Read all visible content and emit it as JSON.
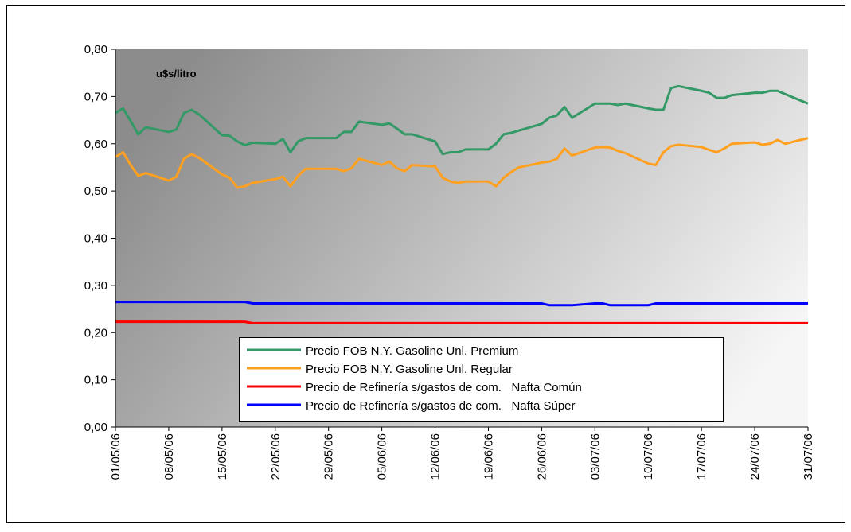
{
  "chart_data": {
    "type": "line",
    "annotation": "u$s/litro",
    "x": [
      "01/05/06",
      "02/05/06",
      "03/05/06",
      "04/05/06",
      "05/05/06",
      "08/05/06",
      "09/05/06",
      "10/05/06",
      "11/05/06",
      "12/05/06",
      "15/05/06",
      "16/05/06",
      "17/05/06",
      "18/05/06",
      "19/05/06",
      "22/05/06",
      "23/05/06",
      "24/05/06",
      "25/05/06",
      "26/05/06",
      "29/05/06",
      "30/05/06",
      "31/05/06",
      "01/06/06",
      "02/06/06",
      "05/06/06",
      "06/06/06",
      "07/06/06",
      "08/06/06",
      "09/06/06",
      "12/06/06",
      "13/06/06",
      "14/06/06",
      "15/06/06",
      "16/06/06",
      "19/06/06",
      "20/06/06",
      "21/06/06",
      "22/06/06",
      "23/06/06",
      "26/06/06",
      "27/06/06",
      "28/06/06",
      "29/06/06",
      "30/06/06",
      "03/07/06",
      "04/07/06",
      "05/07/06",
      "06/07/06",
      "07/07/06",
      "10/07/06",
      "11/07/06",
      "12/07/06",
      "13/07/06",
      "14/07/06",
      "17/07/06",
      "18/07/06",
      "19/07/06",
      "20/07/06",
      "21/07/06",
      "24/07/06",
      "25/07/06",
      "26/07/06",
      "27/07/06",
      "28/07/06",
      "31/07/06"
    ],
    "series": [
      {
        "name": "Precio FOB N.Y. Gasoline Unl. Premium",
        "color": "#339966",
        "values": [
          0.665,
          0.675,
          0.648,
          0.62,
          0.635,
          0.625,
          0.63,
          0.665,
          0.672,
          0.662,
          0.618,
          0.617,
          0.605,
          0.597,
          0.602,
          0.6,
          0.61,
          0.582,
          0.605,
          0.612,
          0.612,
          0.612,
          0.625,
          0.625,
          0.647,
          0.64,
          0.643,
          0.632,
          0.62,
          0.62,
          0.605,
          0.578,
          0.582,
          0.582,
          0.588,
          0.588,
          0.6,
          0.62,
          0.623,
          0.628,
          0.642,
          0.655,
          0.66,
          0.678,
          0.655,
          0.685,
          0.685,
          0.685,
          0.682,
          0.685,
          0.675,
          0.672,
          0.672,
          0.718,
          0.722,
          0.712,
          0.708,
          0.697,
          0.697,
          0.703,
          0.708,
          0.708,
          0.712,
          0.712,
          0.705,
          0.685
        ]
      },
      {
        "name": "Precio FOB N.Y. Gasoline Unl. Regular",
        "color": "#ffa020",
        "values": [
          0.572,
          0.582,
          0.555,
          0.532,
          0.538,
          0.522,
          0.53,
          0.568,
          0.578,
          0.57,
          0.535,
          0.528,
          0.507,
          0.51,
          0.517,
          0.525,
          0.53,
          0.51,
          0.532,
          0.547,
          0.547,
          0.547,
          0.542,
          0.548,
          0.568,
          0.555,
          0.562,
          0.548,
          0.542,
          0.555,
          0.552,
          0.528,
          0.52,
          0.517,
          0.52,
          0.52,
          0.51,
          0.528,
          0.54,
          0.55,
          0.56,
          0.562,
          0.568,
          0.59,
          0.575,
          0.592,
          0.593,
          0.592,
          0.585,
          0.58,
          0.558,
          0.555,
          0.582,
          0.595,
          0.598,
          0.593,
          0.587,
          0.582,
          0.59,
          0.6,
          0.603,
          0.598,
          0.6,
          0.608,
          0.6,
          0.612
        ]
      },
      {
        "name": "Precio de Refinería s/gastos de com.   Nafta Común",
        "color": "#ff0000",
        "values": [
          0.223,
          0.223,
          0.223,
          0.223,
          0.223,
          0.223,
          0.223,
          0.223,
          0.223,
          0.223,
          0.223,
          0.223,
          0.223,
          0.223,
          0.22,
          0.22,
          0.22,
          0.22,
          0.22,
          0.22,
          0.22,
          0.22,
          0.22,
          0.22,
          0.22,
          0.22,
          0.22,
          0.22,
          0.22,
          0.22,
          0.22,
          0.22,
          0.22,
          0.22,
          0.22,
          0.22,
          0.22,
          0.22,
          0.22,
          0.22,
          0.22,
          0.22,
          0.22,
          0.22,
          0.22,
          0.22,
          0.22,
          0.22,
          0.22,
          0.22,
          0.22,
          0.22,
          0.22,
          0.22,
          0.22,
          0.22,
          0.22,
          0.22,
          0.22,
          0.22,
          0.22,
          0.22,
          0.22,
          0.22,
          0.22,
          0.22
        ]
      },
      {
        "name": "Precio de Refinería s/gastos de com.   Nafta Súper",
        "color": "#0000ff",
        "values": [
          0.265,
          0.265,
          0.265,
          0.265,
          0.265,
          0.265,
          0.265,
          0.265,
          0.265,
          0.265,
          0.265,
          0.265,
          0.265,
          0.265,
          0.262,
          0.262,
          0.262,
          0.262,
          0.262,
          0.262,
          0.262,
          0.262,
          0.262,
          0.262,
          0.262,
          0.262,
          0.262,
          0.262,
          0.262,
          0.262,
          0.262,
          0.262,
          0.262,
          0.262,
          0.262,
          0.262,
          0.262,
          0.262,
          0.262,
          0.262,
          0.262,
          0.258,
          0.258,
          0.258,
          0.258,
          0.262,
          0.262,
          0.258,
          0.258,
          0.258,
          0.258,
          0.262,
          0.262,
          0.262,
          0.262,
          0.262,
          0.262,
          0.262,
          0.262,
          0.262,
          0.262,
          0.262,
          0.262,
          0.262,
          0.262,
          0.262
        ]
      }
    ],
    "xlim": [
      "01/05/06",
      "31/07/06"
    ],
    "xticks": [
      "01/05/06",
      "08/05/06",
      "15/05/06",
      "22/05/06",
      "29/05/06",
      "05/06/06",
      "12/06/06",
      "19/06/06",
      "26/06/06",
      "03/07/06",
      "10/07/06",
      "17/07/06",
      "24/07/06",
      "31/07/06"
    ],
    "ylim": [
      0,
      0.8
    ],
    "yticks": [
      {
        "value": 0,
        "label": "0,00"
      },
      {
        "value": 0.1,
        "label": "0,10"
      },
      {
        "value": 0.2,
        "label": "0,20"
      },
      {
        "value": 0.3,
        "label": "0,30"
      },
      {
        "value": 0.4,
        "label": "0,40"
      },
      {
        "value": 0.5,
        "label": "0,50"
      },
      {
        "value": 0.6,
        "label": "0,60"
      },
      {
        "value": 0.7,
        "label": "0,70"
      },
      {
        "value": 0.8,
        "label": "0,80"
      }
    ]
  }
}
